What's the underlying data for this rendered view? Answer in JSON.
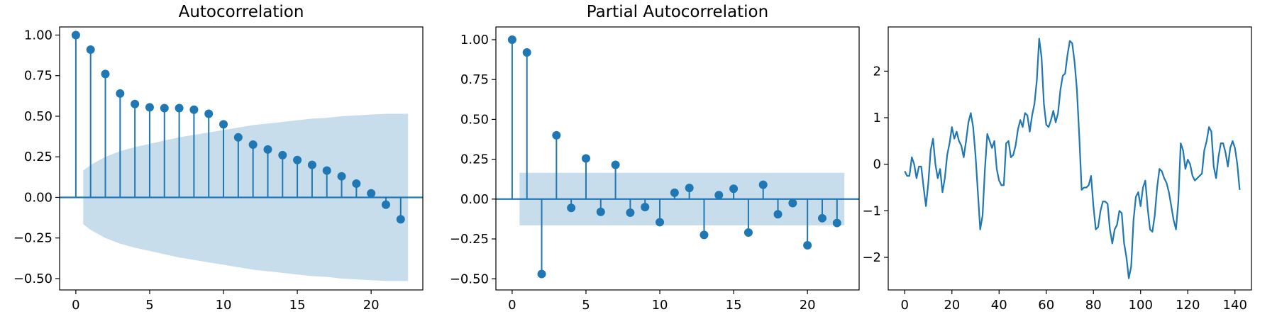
{
  "colors": {
    "accent": "#1f77b4",
    "frame": "#000000",
    "background": "#ffffff"
  },
  "chart_data": [
    {
      "type": "stem",
      "title": "Autocorrelation",
      "xlabel": "",
      "ylabel": "",
      "xlim": [
        -1.1,
        23.5
      ],
      "ylim": [
        -0.57,
        1.05
      ],
      "xticks": [
        0,
        5,
        10,
        15,
        20
      ],
      "yticks": [
        -0.5,
        -0.25,
        0.0,
        0.25,
        0.5,
        0.75,
        1.0
      ],
      "ytick_labels": [
        "−0.50",
        "−0.25",
        "0.00",
        "0.25",
        "0.50",
        "0.75",
        "1.00"
      ],
      "lags": [
        0,
        1,
        2,
        3,
        4,
        5,
        6,
        7,
        8,
        9,
        10,
        11,
        12,
        13,
        14,
        15,
        16,
        17,
        18,
        19,
        20,
        21,
        22
      ],
      "values": [
        1.0,
        0.91,
        0.76,
        0.64,
        0.575,
        0.555,
        0.55,
        0.55,
        0.54,
        0.515,
        0.45,
        0.37,
        0.325,
        0.295,
        0.26,
        0.23,
        0.2,
        0.165,
        0.13,
        0.085,
        0.025,
        -0.045,
        -0.135
      ],
      "confidence_band": {
        "lags": [
          0.5,
          1,
          2,
          3,
          4,
          5,
          6,
          7,
          8,
          9,
          10,
          11,
          12,
          13,
          14,
          15,
          16,
          17,
          18,
          19,
          20,
          21,
          22,
          22.5
        ],
        "upper": [
          0.165,
          0.2,
          0.25,
          0.285,
          0.31,
          0.33,
          0.35,
          0.37,
          0.385,
          0.4,
          0.415,
          0.43,
          0.445,
          0.455,
          0.465,
          0.475,
          0.485,
          0.49,
          0.5,
          0.505,
          0.51,
          0.515,
          0.515,
          0.515
        ]
      },
      "grid": false,
      "legend": "none"
    },
    {
      "type": "stem",
      "title": "Partial Autocorrelation",
      "xlabel": "",
      "ylabel": "",
      "xlim": [
        -1.1,
        23.5
      ],
      "ylim": [
        -0.57,
        1.08
      ],
      "xticks": [
        0,
        5,
        10,
        15,
        20
      ],
      "yticks": [
        -0.5,
        -0.25,
        0.0,
        0.25,
        0.5,
        0.75,
        1.0
      ],
      "ytick_labels": [
        "−0.50",
        "−0.25",
        "0.00",
        "0.25",
        "0.50",
        "0.75",
        "1.00"
      ],
      "lags": [
        0,
        1,
        2,
        3,
        4,
        5,
        6,
        7,
        8,
        9,
        10,
        11,
        12,
        13,
        14,
        15,
        16,
        17,
        18,
        19,
        20,
        21,
        22
      ],
      "values": [
        1.0,
        0.92,
        -0.47,
        0.4,
        -0.055,
        0.255,
        -0.08,
        0.215,
        -0.085,
        -0.05,
        -0.145,
        0.04,
        0.07,
        -0.225,
        0.025,
        0.065,
        -0.21,
        0.09,
        -0.095,
        -0.025,
        -0.29,
        -0.12,
        -0.15
      ],
      "confidence_band": {
        "lags": [
          0.5,
          22.5
        ],
        "upper": [
          0.165,
          0.165
        ]
      },
      "grid": false,
      "legend": "none"
    },
    {
      "type": "line",
      "title": "",
      "xlabel": "",
      "ylabel": "",
      "xlim": [
        -7,
        147
      ],
      "ylim": [
        -2.7,
        2.95
      ],
      "xticks": [
        0,
        20,
        40,
        60,
        80,
        100,
        120,
        140
      ],
      "yticks": [
        -2,
        -1,
        0,
        1,
        2
      ],
      "ytick_labels": [
        "−2",
        "−1",
        "0",
        "1",
        "2"
      ],
      "y": [
        -0.15,
        -0.25,
        -0.25,
        0.15,
        0.0,
        -0.3,
        -0.05,
        -0.05,
        -0.5,
        -0.9,
        -0.4,
        0.3,
        0.55,
        0.0,
        -0.3,
        -0.1,
        -0.6,
        -0.3,
        0.2,
        0.45,
        0.8,
        0.55,
        0.7,
        0.5,
        0.4,
        0.15,
        0.5,
        0.9,
        1.1,
        0.8,
        0.2,
        -0.6,
        -1.4,
        -1.1,
        -0.1,
        0.65,
        0.5,
        0.35,
        0.5,
        -0.1,
        -0.35,
        -0.45,
        -0.45,
        0.45,
        0.5,
        0.15,
        0.2,
        0.4,
        0.75,
        0.95,
        0.8,
        1.1,
        1.05,
        0.7,
        1.05,
        1.3,
        1.8,
        2.7,
        2.3,
        1.3,
        0.85,
        0.8,
        0.95,
        1.15,
        0.9,
        1.1,
        1.6,
        1.9,
        1.95,
        2.35,
        2.65,
        2.6,
        2.2,
        1.6,
        0.6,
        -0.55,
        -0.5,
        -0.5,
        -0.45,
        -0.25,
        -0.9,
        -1.4,
        -1.35,
        -1.0,
        -0.8,
        -0.8,
        -0.85,
        -1.4,
        -1.7,
        -1.4,
        -1.3,
        -1.0,
        -1.05,
        -1.7,
        -2.0,
        -2.45,
        -2.2,
        -1.2,
        -0.7,
        -0.6,
        -0.9,
        -0.5,
        -0.35,
        -0.95,
        -1.4,
        -1.45,
        -1.1,
        -0.5,
        -0.1,
        -0.15,
        -0.3,
        -0.4,
        -0.6,
        -0.9,
        -1.2,
        -1.4,
        -0.8,
        0.45,
        0.3,
        -0.1,
        0.1,
        0.0,
        -0.25,
        -0.35,
        -0.3,
        -0.25,
        -0.2,
        0.3,
        0.5,
        0.8,
        0.7,
        -0.05,
        -0.3,
        0.15,
        0.45,
        0.45,
        0.25,
        -0.05,
        0.35,
        0.5,
        0.35,
        0.0,
        -0.55
      ],
      "grid": false,
      "legend": "none"
    }
  ]
}
